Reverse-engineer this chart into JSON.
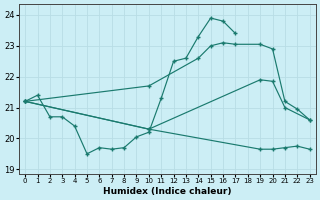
{
  "bg_color": "#cceef5",
  "grid_color": "#b8dde5",
  "line_color": "#1a7a6e",
  "xlim": [
    -0.5,
    23.5
  ],
  "ylim": [
    18.85,
    24.35
  ],
  "yticks": [
    19,
    20,
    21,
    22,
    23,
    24
  ],
  "xlabel": "Humidex (Indice chaleur)",
  "figsize": [
    3.2,
    2.0
  ],
  "dpi": 100,
  "line1_x": [
    0,
    1,
    2,
    3,
    4,
    5,
    6,
    7,
    8,
    9,
    10,
    11,
    12,
    13,
    14,
    15,
    16,
    17
  ],
  "line1_y": [
    21.2,
    21.4,
    20.7,
    20.7,
    20.4,
    19.5,
    19.7,
    19.65,
    19.7,
    20.05,
    20.2,
    21.3,
    22.5,
    22.6,
    23.3,
    23.9,
    23.8,
    23.4
  ],
  "line2_x": [
    0,
    10,
    14,
    15,
    16,
    17,
    19,
    20,
    21,
    22,
    23
  ],
  "line2_y": [
    21.2,
    21.7,
    22.6,
    23.0,
    23.1,
    23.05,
    23.05,
    22.9,
    21.2,
    20.95,
    20.6
  ],
  "line3_x": [
    0,
    10,
    19,
    20,
    21,
    23
  ],
  "line3_y": [
    21.2,
    20.3,
    21.9,
    21.85,
    21.0,
    20.6
  ],
  "line4_x": [
    0,
    10,
    19,
    20,
    21,
    22,
    23
  ],
  "line4_y": [
    21.2,
    20.3,
    19.65,
    19.65,
    19.7,
    19.75,
    19.65
  ]
}
